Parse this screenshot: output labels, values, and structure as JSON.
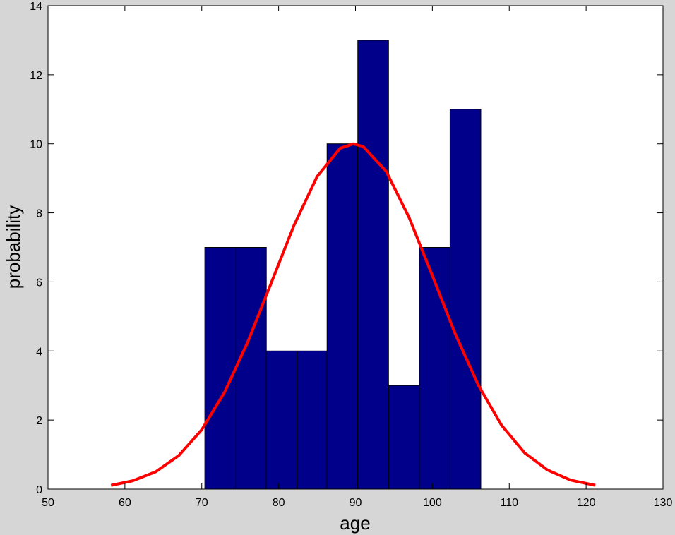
{
  "chart_data": {
    "type": "histogram",
    "xlabel": "age",
    "ylabel": "probability",
    "bins": [
      70.4,
      74.4,
      78.4,
      82.4,
      86.3,
      90.3,
      94.3,
      98.3,
      102.3,
      106.3
    ],
    "values": [
      7,
      7,
      4,
      4,
      10,
      13,
      3,
      7,
      11
    ],
    "color": "#00008b",
    "curve": {
      "color": "#ff0000",
      "x": [
        58.2,
        61,
        64,
        67,
        70,
        73,
        76,
        79,
        82,
        85,
        88,
        89.7,
        91,
        94,
        97,
        100,
        103,
        106,
        109,
        112,
        115,
        118,
        121.2
      ],
      "y": [
        0.11,
        0.24,
        0.5,
        0.97,
        1.72,
        2.82,
        4.27,
        5.95,
        7.64,
        9.05,
        9.87,
        10,
        9.92,
        9.2,
        7.85,
        6.18,
        4.48,
        3.0,
        1.85,
        1.05,
        0.55,
        0.26,
        0.11
      ]
    },
    "xlim": [
      50,
      130
    ],
    "xticks": [
      50,
      60,
      70,
      80,
      90,
      100,
      110,
      120,
      130
    ],
    "ylim": [
      0,
      14
    ],
    "yticks": [
      0,
      2,
      4,
      6,
      8,
      10,
      12,
      14
    ]
  }
}
